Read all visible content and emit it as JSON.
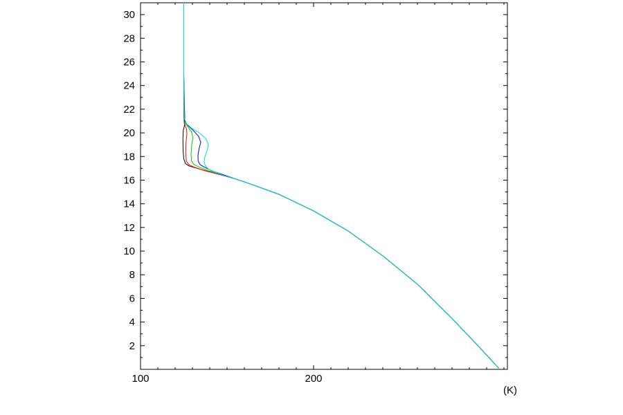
{
  "chart_data": {
    "type": "line",
    "title": "",
    "xlabel": "",
    "ylabel": "",
    "x_unit_label": "(K)",
    "xlim": [
      100,
      312
    ],
    "ylim": [
      0,
      31
    ],
    "x_major_ticks": [
      100,
      200
    ],
    "x_minor_ticks": [
      110,
      120,
      130,
      140,
      150,
      160,
      170,
      180,
      190,
      210,
      220,
      230,
      240,
      250,
      260,
      270,
      280,
      290,
      300,
      310
    ],
    "y_major_ticks": [
      2,
      4,
      6,
      8,
      10,
      12,
      14,
      16,
      18,
      20,
      22,
      24,
      26,
      28,
      30
    ],
    "y_minor_ticks": [
      1,
      3,
      5,
      7,
      9,
      11,
      13,
      15,
      17,
      19,
      21,
      23,
      25,
      27,
      29
    ],
    "grid": false,
    "legend": "none",
    "series": [
      {
        "color": "#000000",
        "x": [
          307,
          295,
          280,
          260,
          240,
          220,
          200,
          180,
          165,
          155,
          145,
          135,
          128,
          126,
          125,
          124.6,
          124.5,
          124.7,
          125.2,
          125.5,
          125.3,
          125.0,
          125.0,
          125.0
        ],
        "y": [
          0.1,
          2,
          4.3,
          7.2,
          9.6,
          11.7,
          13.4,
          14.8,
          15.6,
          16.1,
          16.5,
          16.9,
          17.2,
          17.4,
          17.8,
          18.5,
          19.5,
          20.2,
          20.5,
          20.7,
          21.0,
          21.5,
          25,
          31
        ]
      },
      {
        "color": "#ff0000",
        "x": [
          307,
          295,
          280,
          260,
          240,
          220,
          200,
          180,
          165,
          155,
          145,
          137,
          131,
          128,
          126.5,
          126.1,
          126.3,
          126.8,
          126.6,
          125.8,
          125.2,
          125.0,
          125.0,
          125.0
        ],
        "y": [
          0.1,
          2,
          4.3,
          7.2,
          9.6,
          11.7,
          13.4,
          14.8,
          15.6,
          16.1,
          16.5,
          16.8,
          17.1,
          17.3,
          17.6,
          18.3,
          19.2,
          19.9,
          20.3,
          20.6,
          20.9,
          21.5,
          25,
          31
        ]
      },
      {
        "color": "#00cc00",
        "x": [
          307,
          295,
          280,
          260,
          240,
          220,
          200,
          180,
          165,
          155,
          146,
          139,
          134,
          131,
          129.5,
          129.2,
          129.6,
          130.3,
          129.4,
          127.4,
          125.8,
          125.1,
          125.0,
          125.0
        ],
        "y": [
          0.1,
          2,
          4.3,
          7.2,
          9.6,
          11.7,
          13.4,
          14.8,
          15.6,
          16.1,
          16.5,
          16.8,
          17.1,
          17.3,
          17.6,
          18.2,
          19.0,
          19.6,
          20.1,
          20.5,
          20.8,
          21.3,
          25,
          31
        ]
      },
      {
        "color": "#0000cc",
        "x": [
          307,
          295,
          280,
          260,
          240,
          220,
          200,
          180,
          165,
          155,
          147,
          141,
          137,
          134.5,
          133.3,
          133.2,
          133.9,
          134.8,
          133.6,
          130.5,
          127.5,
          125.6,
          125.0,
          125.0
        ],
        "y": [
          0.1,
          2,
          4.3,
          7.2,
          9.6,
          11.7,
          13.4,
          14.8,
          15.6,
          16.1,
          16.5,
          16.8,
          17.1,
          17.3,
          17.6,
          18.1,
          18.7,
          19.2,
          19.7,
          20.2,
          20.6,
          21.0,
          25,
          31
        ]
      },
      {
        "color": "#00dddd",
        "x": [
          307,
          295,
          280,
          260,
          240,
          220,
          200,
          180,
          165,
          155,
          148,
          143,
          139.5,
          137.5,
          136.7,
          137.2,
          138.5,
          139.2,
          137.8,
          134,
          129.5,
          126.4,
          125.3,
          125.0,
          125.0
        ],
        "y": [
          0.1,
          2,
          4.3,
          7.2,
          9.6,
          11.7,
          13.4,
          14.8,
          15.6,
          16.1,
          16.4,
          16.7,
          16.9,
          17.2,
          17.5,
          18.0,
          18.5,
          19.0,
          19.5,
          20.0,
          20.4,
          20.8,
          21.3,
          25,
          31
        ]
      }
    ]
  }
}
